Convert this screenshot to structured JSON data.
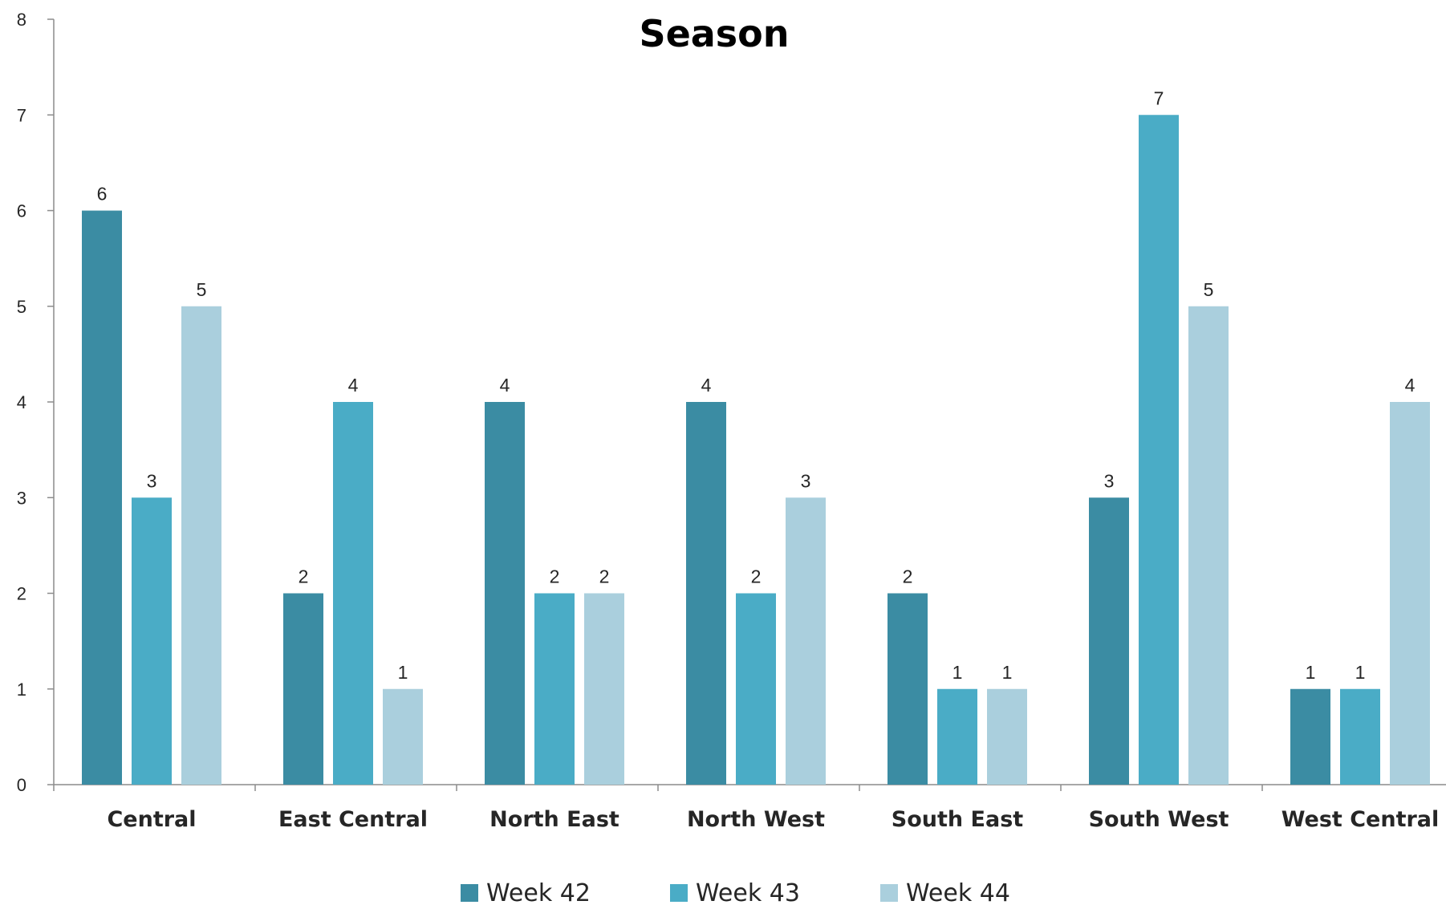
{
  "chart_data": {
    "type": "bar",
    "title": "Season",
    "xlabel": "",
    "ylabel": "",
    "ylim": [
      0,
      8
    ],
    "yticks": [
      0,
      1,
      2,
      3,
      4,
      5,
      6,
      7,
      8
    ],
    "categories": [
      "Central",
      "East Central",
      "North East",
      "North West",
      "South East",
      "South West",
      "West Central"
    ],
    "series": [
      {
        "name": "Week 42",
        "color": "#3b8ca3",
        "values": [
          6,
          2,
          4,
          4,
          2,
          3,
          1
        ]
      },
      {
        "name": "Week 43",
        "color": "#4aacc6",
        "values": [
          3,
          4,
          2,
          2,
          1,
          7,
          1
        ]
      },
      {
        "name": "Week 44",
        "color": "#aacfdd",
        "values": [
          5,
          1,
          2,
          3,
          1,
          5,
          4
        ]
      }
    ],
    "data_labels": true,
    "grid": false,
    "legend_position": "bottom"
  }
}
